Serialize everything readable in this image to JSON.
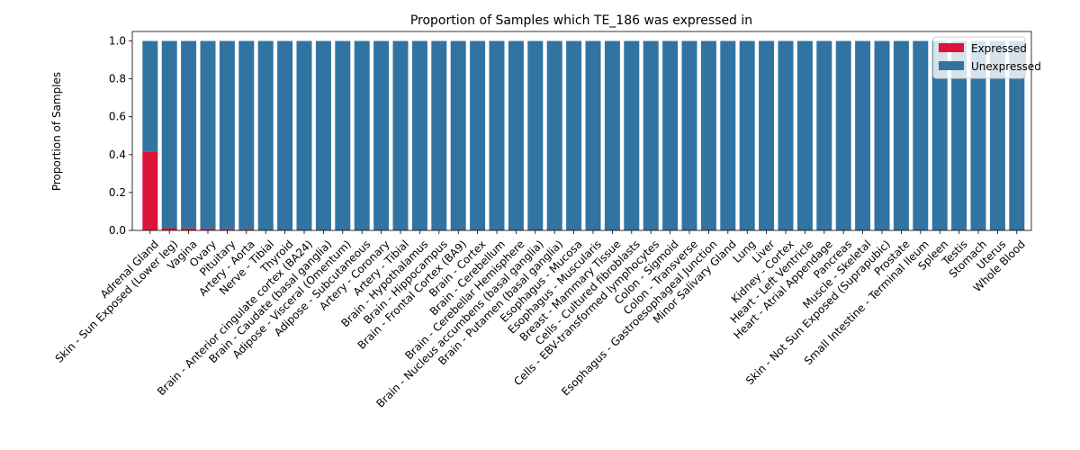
{
  "chart_data": {
    "type": "bar",
    "stacked": true,
    "title": "Proportion of Samples which TE_186 was expressed in",
    "xlabel": "",
    "ylabel": "Proportion of Samples",
    "ylim": [
      0,
      1.05
    ],
    "yticks": [
      "0.0",
      "0.2",
      "0.4",
      "0.6",
      "0.8",
      "1.0"
    ],
    "grid": false,
    "legend_position": "top-right",
    "categories": [
      "Adrenal Gland",
      "Skin - Sun Exposed (Lower leg)",
      "Vagina",
      "Ovary",
      "Pituitary",
      "Artery - Aorta",
      "Nerve - Tibial",
      "Thyroid",
      "Brain - Anterior cingulate cortex (BA24)",
      "Brain - Caudate (basal ganglia)",
      "Adipose - Visceral (Omentum)",
      "Adipose - Subcutaneous",
      "Artery - Coronary",
      "Artery - Tibial",
      "Brain - Hypothalamus",
      "Brain - Hippocampus",
      "Brain - Frontal Cortex (BA9)",
      "Brain - Cortex",
      "Brain - Cerebellum",
      "Brain - Cerebellar Hemisphere",
      "Brain - Nucleus accumbens (basal ganglia)",
      "Brain - Putamen (basal ganglia)",
      "Esophagus - Mucosa",
      "Esophagus - Muscularis",
      "Breast - Mammary Tissue",
      "Cells - Cultured fibroblasts",
      "Cells - EBV-transformed lymphocytes",
      "Colon - Sigmoid",
      "Colon - Transverse",
      "Esophagus - Gastroesophageal Junction",
      "Minor Salivary Gland",
      "Lung",
      "Liver",
      "Kidney - Cortex",
      "Heart - Left Ventricle",
      "Heart - Atrial Appendage",
      "Pancreas",
      "Muscle - Skeletal",
      "Skin - Not Sun Exposed (Suprapubic)",
      "Prostate",
      "Small Intestine - Terminal Ileum",
      "Spleen",
      "Testis",
      "Stomach",
      "Uterus",
      "Whole Blood"
    ],
    "series": [
      {
        "name": "Expressed",
        "color": "#dc143c",
        "values": [
          0.417,
          0.012,
          0.011,
          0.009,
          0.008,
          0.006,
          0,
          0,
          0,
          0,
          0,
          0,
          0,
          0,
          0,
          0,
          0,
          0,
          0,
          0,
          0,
          0,
          0,
          0,
          0,
          0,
          0,
          0,
          0,
          0,
          0,
          0,
          0,
          0,
          0,
          0,
          0,
          0,
          0,
          0,
          0,
          0,
          0,
          0,
          0,
          0
        ]
      },
      {
        "name": "Unexpressed",
        "color": "#3274a1",
        "values": [
          0.583,
          0.988,
          0.989,
          0.991,
          0.992,
          0.994,
          1,
          1,
          1,
          1,
          1,
          1,
          1,
          1,
          1,
          1,
          1,
          1,
          1,
          1,
          1,
          1,
          1,
          1,
          1,
          1,
          1,
          1,
          1,
          1,
          1,
          1,
          1,
          1,
          1,
          1,
          1,
          1,
          1,
          1,
          1,
          1,
          1,
          1,
          1,
          1
        ]
      }
    ]
  }
}
